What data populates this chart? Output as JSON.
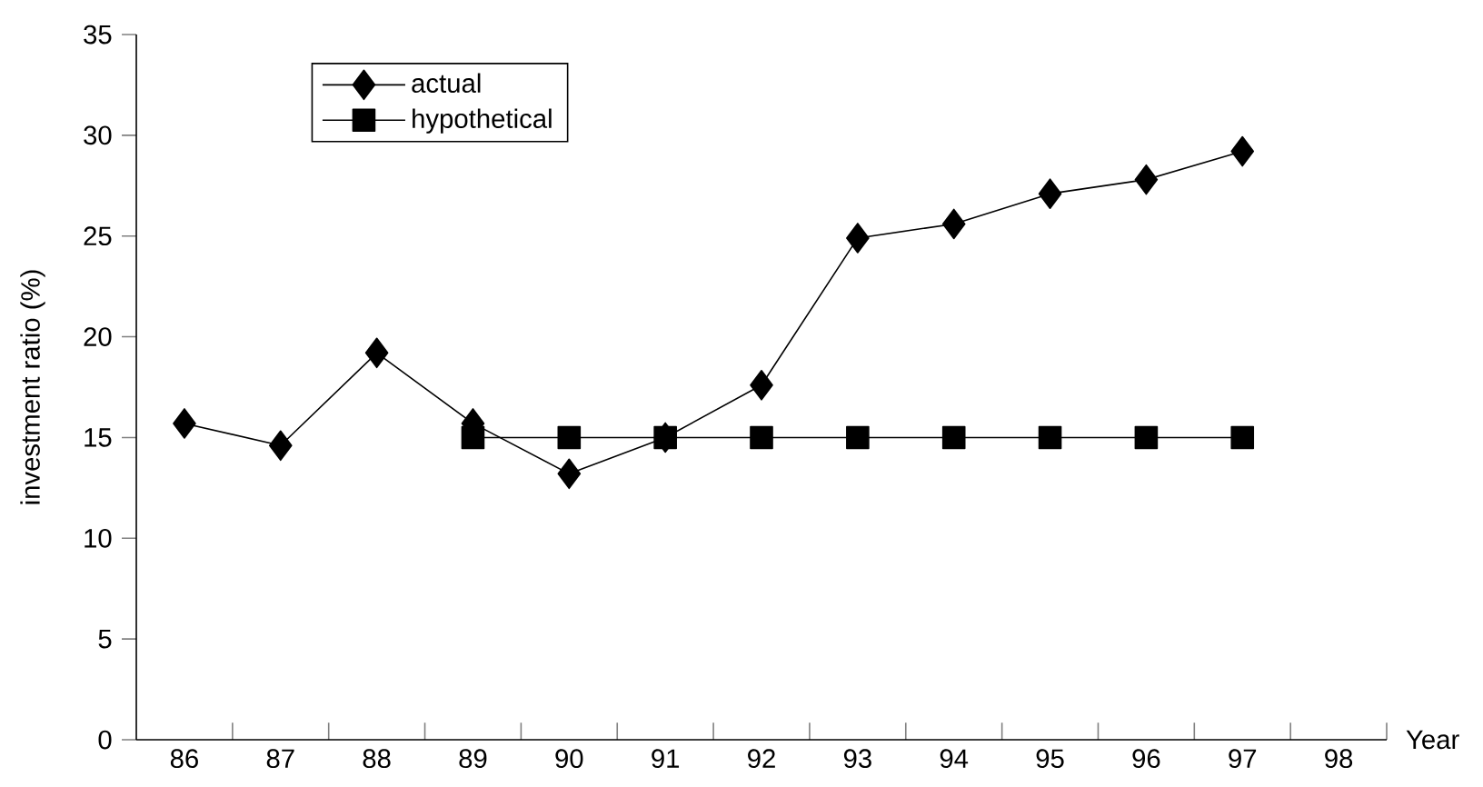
{
  "chart_data": {
    "type": "line",
    "xlabel": "Year",
    "ylabel": "investment ratio (%)",
    "categories": [
      "86",
      "87",
      "88",
      "89",
      "90",
      "91",
      "92",
      "93",
      "94",
      "95",
      "96",
      "97",
      "98"
    ],
    "series": [
      {
        "name": "actual",
        "color": "#000000",
        "marker": "diamond",
        "values": [
          15.7,
          14.6,
          19.2,
          15.7,
          13.2,
          15.0,
          17.6,
          24.9,
          25.6,
          27.1,
          27.8,
          29.2,
          null
        ]
      },
      {
        "name": "hypothetical",
        "color": "#000000",
        "marker": "square",
        "values": [
          null,
          null,
          null,
          15,
          15,
          15,
          15,
          15,
          15,
          15,
          15,
          15,
          null
        ]
      }
    ],
    "ylim": [
      0,
      35
    ],
    "yticks": [
      0,
      5,
      10,
      15,
      20,
      25,
      30,
      35
    ],
    "grid": false,
    "legend": "top left",
    "line_style": "solid"
  }
}
